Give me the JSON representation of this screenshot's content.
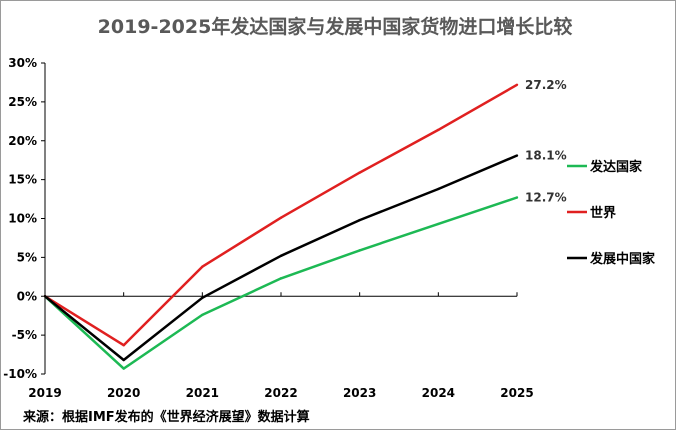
{
  "chart_data": {
    "type": "line",
    "title": "2019-2025年发达国家与发展中国家货物进口增长比较",
    "source": "来源：根据IMF发布的《世界经济展望》数据计算",
    "xlabel": "",
    "ylabel": "",
    "x": [
      "2019",
      "2020",
      "2021",
      "2022",
      "2023",
      "2024",
      "2025"
    ],
    "ylim": [
      -10,
      30
    ],
    "yticks": [
      "-10%",
      "-5%",
      "0%",
      "5%",
      "10%",
      "15%",
      "20%",
      "25%",
      "30%"
    ],
    "grid": false,
    "legend_position": "right",
    "series": [
      {
        "name": "发达国家",
        "color": "#1db954",
        "values": [
          0,
          -9.3,
          -2.4,
          2.3,
          5.9,
          9.3,
          12.7
        ],
        "end_label": "12.7%"
      },
      {
        "name": "世界",
        "color": "#e02020",
        "values": [
          0,
          -6.3,
          3.8,
          10.1,
          15.9,
          21.4,
          27.2
        ],
        "end_label": "27.2%"
      },
      {
        "name": "发展中国家",
        "color": "#000000",
        "values": [
          0,
          -8.2,
          -0.2,
          5.2,
          9.8,
          13.8,
          18.1
        ],
        "end_label": "18.1%"
      }
    ]
  }
}
